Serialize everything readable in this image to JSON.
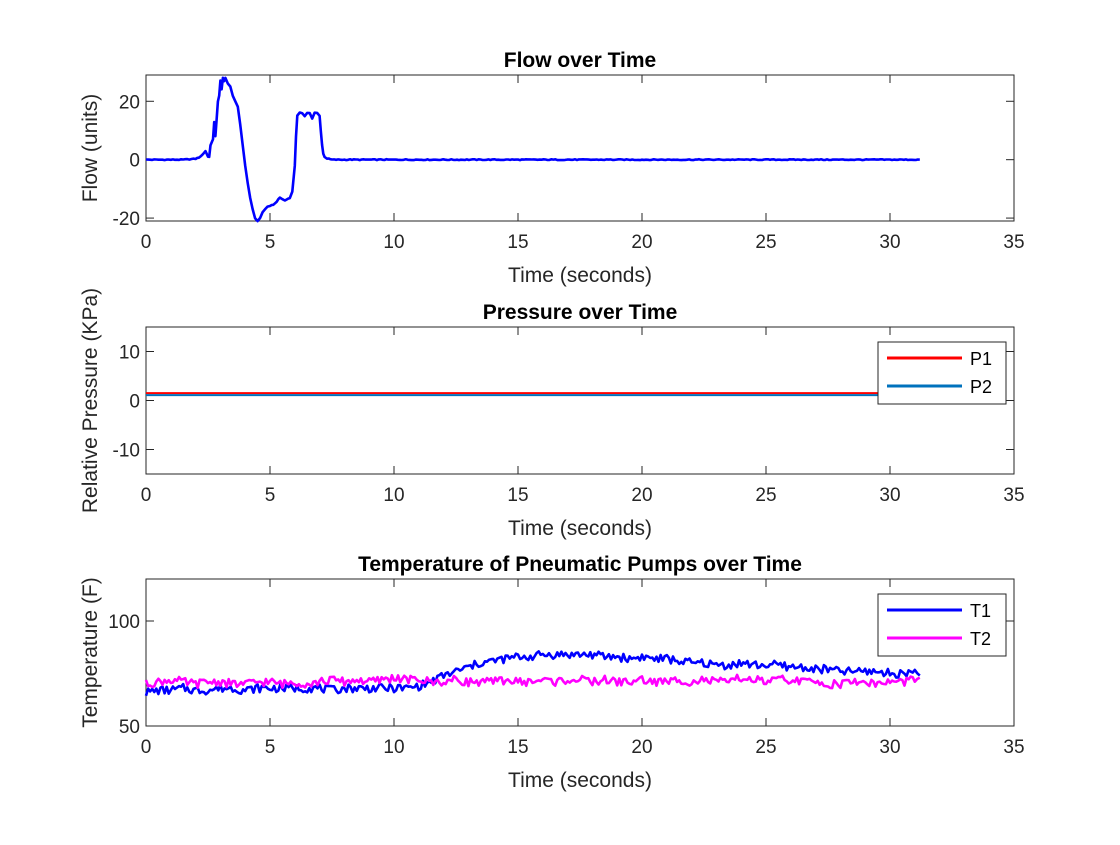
{
  "figure": {
    "background": "#ffffff"
  },
  "chart_data": [
    {
      "type": "line",
      "title": "Flow over Time",
      "xlabel": "Time (seconds)",
      "ylabel": "Flow (units)",
      "xlim": [
        0,
        35
      ],
      "ylim": [
        -21,
        29
      ],
      "xticks": [
        0,
        5,
        10,
        15,
        20,
        25,
        30,
        35
      ],
      "yticks": [
        -20,
        0,
        20
      ],
      "grid": false,
      "legend": null,
      "series": [
        {
          "color": "#0000ff",
          "x": [
            0,
            0.5,
            1,
            1.5,
            2,
            2.2,
            2.4,
            2.5,
            2.55,
            2.6,
            2.7,
            2.75,
            2.8,
            2.85,
            2.9,
            2.95,
            3.0,
            3.05,
            3.1,
            3.15,
            3.2,
            3.3,
            3.4,
            3.5,
            3.6,
            3.7,
            3.8,
            3.9,
            4.0,
            4.1,
            4.2,
            4.3,
            4.4,
            4.5,
            4.6,
            4.7,
            4.8,
            4.9,
            5.0,
            5.2,
            5.4,
            5.6,
            5.8,
            5.9,
            6.0,
            6.05,
            6.1,
            6.2,
            6.3,
            6.4,
            6.5,
            6.6,
            6.7,
            6.8,
            6.9,
            7.0,
            7.05,
            7.1,
            7.15,
            7.2,
            7.3,
            7.5,
            8,
            9,
            10,
            15,
            20,
            25,
            30,
            31.2
          ],
          "values": [
            0,
            0,
            0,
            0,
            0.3,
            1,
            3,
            1,
            1,
            5,
            7,
            13,
            8,
            14,
            20,
            22,
            27,
            24,
            28,
            27,
            28,
            26,
            25,
            22,
            20,
            18,
            12,
            5,
            -2,
            -8,
            -13,
            -17,
            -20,
            -21,
            -20,
            -18,
            -17,
            -16,
            -16,
            -15,
            -13,
            -14,
            -13,
            -11,
            -2,
            8,
            15,
            16,
            16,
            15,
            16,
            16,
            14,
            16,
            16,
            15,
            10,
            5,
            2,
            1,
            0.4,
            0,
            0,
            0,
            0,
            0,
            0,
            0,
            0,
            0
          ]
        }
      ]
    },
    {
      "type": "line",
      "title": "Pressure over Time",
      "xlabel": "Time (seconds)",
      "ylabel": "Relative Pressure (KPa)",
      "xlim": [
        0,
        35
      ],
      "ylim": [
        -15,
        15
      ],
      "xticks": [
        0,
        5,
        10,
        15,
        20,
        25,
        30,
        35
      ],
      "yticks": [
        -10,
        0,
        10
      ],
      "grid": false,
      "legend": "top-right",
      "series": [
        {
          "name": "P1",
          "color": "#ff0000",
          "x": [
            0,
            31.2
          ],
          "values": [
            1.5,
            1.5
          ]
        },
        {
          "name": "P2",
          "color": "#0072bd",
          "x": [
            0,
            31.2
          ],
          "values": [
            1.1,
            1.1
          ]
        }
      ]
    },
    {
      "type": "line",
      "title": "Temperature of Pneumatic Pumps over Time",
      "xlabel": "Time (seconds)",
      "ylabel": "Temperature (F)",
      "xlim": [
        0,
        35
      ],
      "ylim": [
        50,
        120
      ],
      "xticks": [
        0,
        5,
        10,
        15,
        20,
        25,
        30,
        35
      ],
      "yticks": [
        50,
        100
      ],
      "grid": false,
      "legend": "top-right",
      "series": [
        {
          "name": "T1",
          "color": "#0000ff",
          "x": [
            0,
            0.5,
            1,
            1.5,
            2,
            2.5,
            3,
            3.5,
            4,
            4.5,
            5,
            5.5,
            6,
            6.5,
            7,
            7.5,
            8,
            8.5,
            9,
            9.5,
            10,
            10.5,
            11,
            11.5,
            12,
            12.5,
            13,
            13.5,
            14,
            14.5,
            15,
            15.5,
            16,
            16.5,
            17,
            17.5,
            18,
            18.5,
            19,
            19.5,
            20,
            20.5,
            21,
            21.5,
            22,
            22.5,
            23,
            23.5,
            24,
            24.5,
            25,
            25.5,
            26,
            26.5,
            27,
            27.5,
            28,
            28.5,
            29,
            29.5,
            30,
            30.5,
            31,
            31.2
          ],
          "values": [
            66,
            67,
            67,
            68,
            67,
            67,
            68,
            68,
            67,
            68,
            68,
            68,
            68,
            68,
            68,
            67,
            68,
            68,
            68,
            68,
            68,
            68,
            69,
            71,
            74,
            76,
            78,
            80,
            81,
            82,
            83,
            83,
            84,
            84,
            84,
            84,
            84,
            83,
            83,
            82,
            83,
            82,
            82,
            81,
            80,
            80,
            79,
            79,
            80,
            79,
            79,
            79,
            78,
            78,
            77,
            77,
            76,
            76,
            76,
            76,
            75,
            75,
            76,
            74
          ]
        },
        {
          "name": "T2",
          "color": "#ff00ff",
          "x": [
            0,
            0.5,
            1,
            1.5,
            2,
            2.5,
            3,
            3.5,
            4,
            4.5,
            5,
            5.5,
            6,
            6.5,
            7,
            7.5,
            8,
            8.5,
            9,
            9.5,
            10,
            10.5,
            11,
            11.5,
            12,
            12.5,
            13,
            13.5,
            14,
            14.5,
            15,
            15.5,
            16,
            16.5,
            17,
            17.5,
            18,
            18.5,
            19,
            19.5,
            20,
            20.5,
            21,
            21.5,
            22,
            22.5,
            23,
            23.5,
            24,
            24.5,
            25,
            25.5,
            26,
            26.5,
            27,
            27.5,
            28,
            28.5,
            29,
            29.5,
            30,
            30.5,
            31,
            31.2
          ],
          "values": [
            70,
            71,
            72,
            71,
            70,
            71,
            71,
            70,
            70,
            71,
            71,
            70,
            71,
            70,
            71,
            72,
            71,
            72,
            71,
            72,
            73,
            72,
            72,
            71,
            71,
            72,
            71,
            71,
            71,
            72,
            71,
            71,
            72,
            71,
            72,
            72,
            71,
            72,
            71,
            71,
            72,
            71,
            71,
            72,
            71,
            72,
            71,
            71,
            73,
            72,
            71,
            72,
            72,
            71,
            71,
            70,
            70,
            71,
            71,
            70,
            71,
            71,
            72,
            73
          ]
        }
      ]
    }
  ]
}
